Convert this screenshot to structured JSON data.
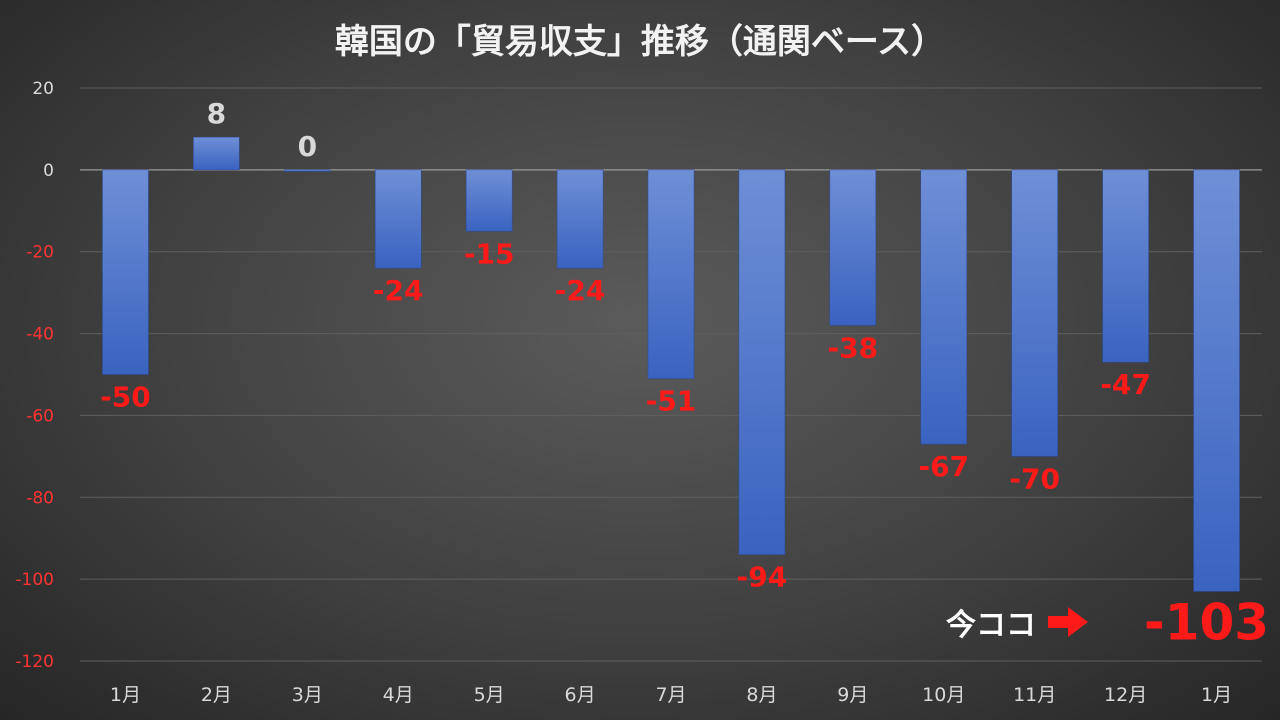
{
  "chart_data": {
    "type": "bar",
    "title": "韓国の「貿易収支」推移（通関ベース）",
    "categories": [
      "1月",
      "2月",
      "3月",
      "4月",
      "5月",
      "6月",
      "7月",
      "8月",
      "9月",
      "10月",
      "11月",
      "12月",
      "1月"
    ],
    "values": [
      -50,
      8,
      0,
      -24,
      -15,
      -24,
      -51,
      -94,
      -38,
      -67,
      -70,
      -47,
      -103
    ],
    "data_labels": [
      "-50",
      "8",
      "0",
      "-24",
      "-15",
      "-24",
      "-51",
      "-94",
      "-38",
      "-67",
      "-70",
      "-47",
      "-103"
    ],
    "ylim": [
      -120,
      20
    ],
    "yticks": [
      "20",
      "0",
      "-20",
      "-40",
      "-60",
      "-80",
      "-100",
      "-120"
    ],
    "ytick_values": [
      20,
      0,
      -20,
      -40,
      -60,
      -80,
      -100,
      -120
    ],
    "grid": true,
    "xlabel": "",
    "ylabel": "",
    "colors": {
      "bar_top": "#6f8fd6",
      "bar_bottom": "#3a63c0",
      "negative_label": "#ff1a1a",
      "positive_label": "#d9d9d9",
      "tick_positive": "#d9d9d9",
      "tick_negative": "#ff3333"
    }
  },
  "annotation": {
    "text": "今ココ",
    "icon": "arrow-right-icon"
  }
}
